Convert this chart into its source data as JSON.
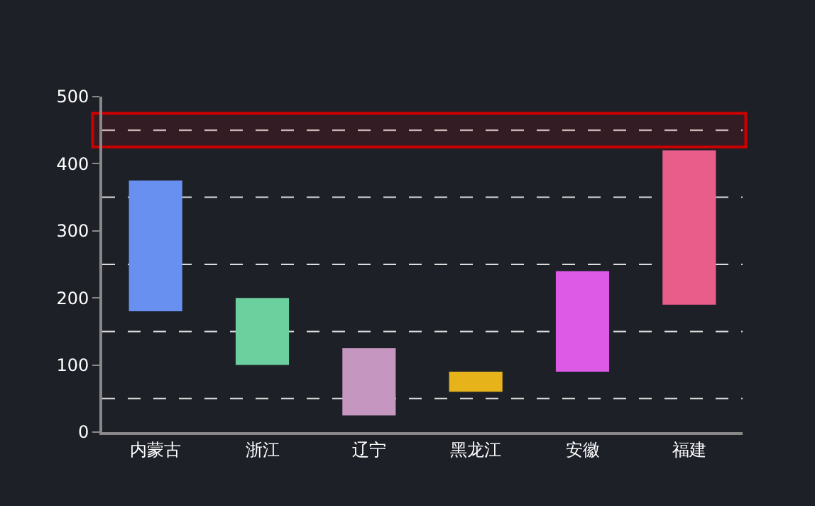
{
  "chart_data": {
    "type": "bar",
    "categories": [
      "内蒙古",
      "浙江",
      "辽宁",
      "黑龙江",
      "安徽",
      "福建"
    ],
    "values": [
      195,
      100,
      100,
      30,
      150,
      230
    ],
    "base": [
      180,
      100,
      25,
      60,
      90,
      190
    ],
    "colors": [
      "#6890f0",
      "#6ccf9e",
      "#c496c0",
      "#e6b41a",
      "#dc5ae6",
      "#e85d89"
    ],
    "ylim": [
      0,
      500
    ],
    "yticks": [
      0,
      100,
      200,
      300,
      400,
      500
    ],
    "ref_lines": [
      {
        "axis": "y",
        "value": 50,
        "color": "#dddddd",
        "line_style": "dashed"
      },
      {
        "axis": "y",
        "value": 150,
        "color": "#dddddd",
        "line_style": "dashed"
      },
      {
        "axis": "y",
        "value": 250,
        "color": "#dddddd",
        "line_style": "dashed"
      },
      {
        "axis": "y",
        "value": 350,
        "color": "#dddddd",
        "line_style": "dashed"
      },
      {
        "axis": "y",
        "value": 450,
        "color": "#dddddd",
        "line_style": "dashed"
      }
    ],
    "bands": [
      {
        "axis": "y",
        "from": 425,
        "to": 475,
        "color": "#cc0000"
      }
    ]
  }
}
